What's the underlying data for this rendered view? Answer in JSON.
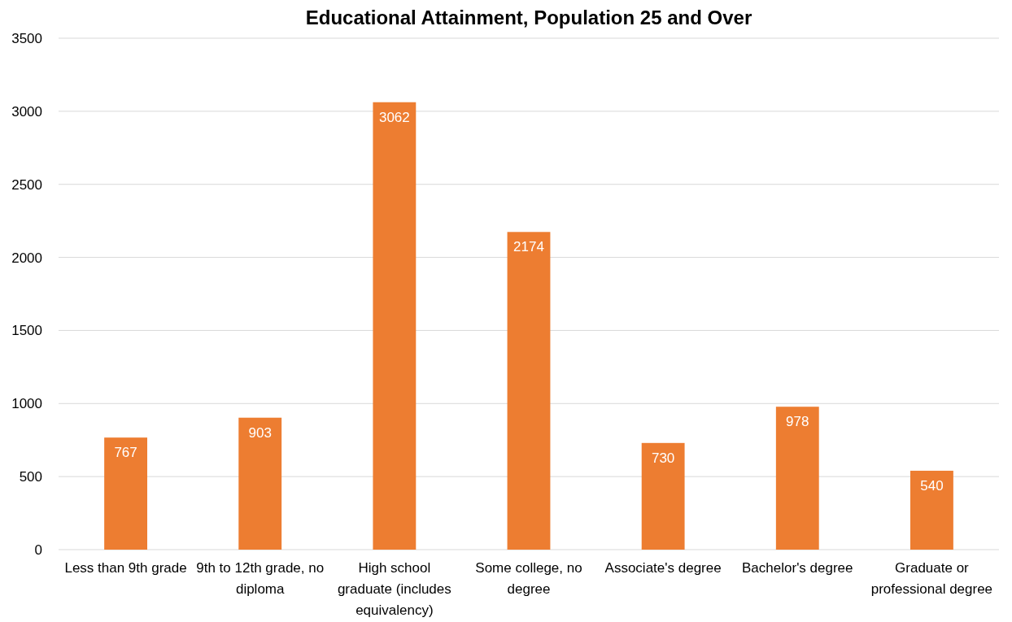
{
  "chart_data": {
    "type": "bar",
    "title": "Educational Attainment, Population 25 and Over",
    "categories": [
      "Less than 9th grade",
      "9th to 12th grade, no diploma",
      "High school graduate (includes equivalency)",
      "Some college, no degree",
      "Associate's degree",
      "Bachelor's degree",
      "Graduate or professional degree"
    ],
    "values": [
      767,
      903,
      3062,
      2174,
      730,
      978,
      540
    ],
    "color": "#ed7d31",
    "ylim": [
      0,
      3500
    ],
    "yticks": [
      0,
      500,
      1000,
      1500,
      2000,
      2500,
      3000,
      3500
    ],
    "grid": true,
    "data_labels": true
  }
}
